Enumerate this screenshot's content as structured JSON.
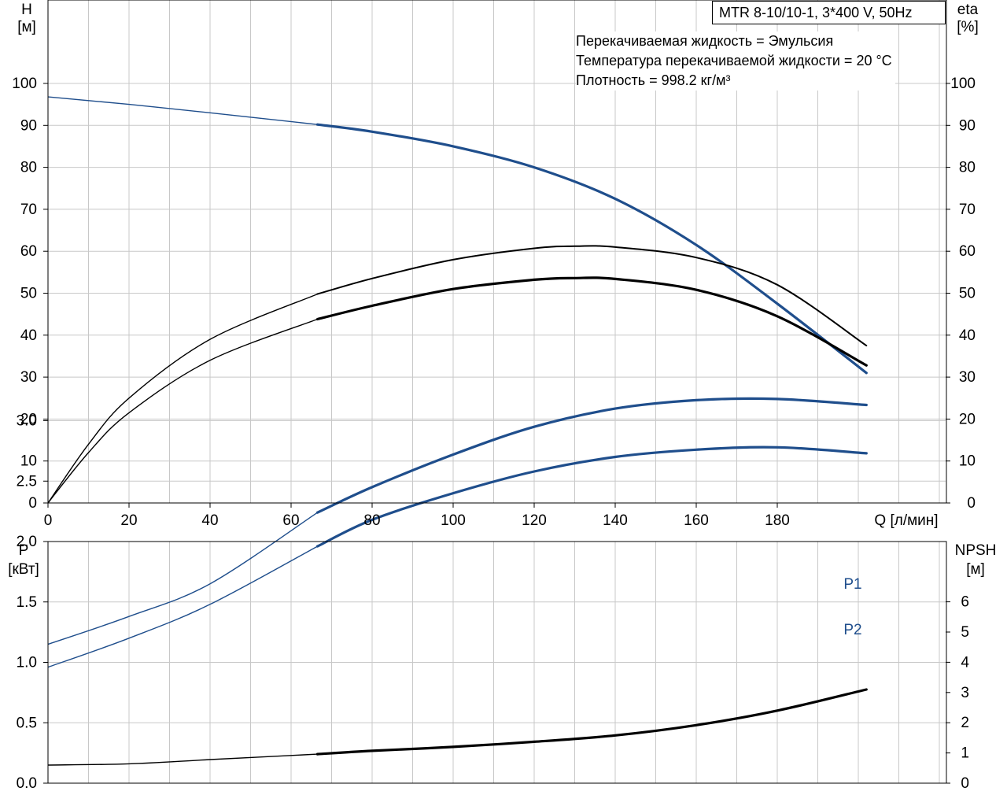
{
  "pump_label": "MTR 8-10/10-1, 3*400 V, 50Hz",
  "fluid_info": [
    "Перекачиваемая жидкость = Эмульсия",
    "Температура перекачиваемой жидкости = 20 °C",
    "Плотность = 998.2 кг/м³"
  ],
  "colors": {
    "blue": "#1f4e8c",
    "black": "#000000",
    "grid": "#c8c8c8"
  },
  "chart_data": [
    {
      "type": "line",
      "x_label": "Q [л/мин]",
      "y_left_label": [
        "H",
        "[м]"
      ],
      "y_right_label": [
        "eta",
        "[%]"
      ],
      "xlim": [
        0,
        222
      ],
      "ylim": [
        0,
        100
      ],
      "x_ticks": [
        0,
        20,
        40,
        60,
        80,
        100,
        120,
        140,
        160,
        180
      ],
      "y_ticks": [
        0,
        10,
        20,
        30,
        40,
        50,
        60,
        70,
        80,
        90,
        100
      ],
      "grid": true,
      "operating_range_start": 66.5,
      "series": [
        {
          "key": "H",
          "color": "#1f4e8c",
          "x": [
            0,
            20,
            40,
            66.5,
            80,
            100,
            120,
            140,
            160,
            180,
            202
          ],
          "y": [
            96.8,
            95,
            93,
            90.2,
            88.5,
            85,
            80,
            72.5,
            61.5,
            47.5,
            31
          ]
        },
        {
          "key": "eta",
          "color": "#000000",
          "x": [
            0,
            10,
            20,
            40,
            66.5,
            80,
            100,
            120,
            130,
            140,
            160,
            180,
            202
          ],
          "y": [
            0,
            14,
            25,
            39,
            49.8,
            53.5,
            58,
            60.7,
            61.2,
            61,
            58.5,
            52,
            37.5
          ]
        },
        {
          "key": "eta2",
          "color": "#000000",
          "x": [
            0,
            10,
            20,
            40,
            66.5,
            80,
            100,
            120,
            130,
            140,
            160,
            180,
            202
          ],
          "y": [
            0,
            12,
            21.5,
            34,
            43.8,
            47,
            51,
            53.2,
            53.6,
            53.4,
            50.8,
            44.5,
            32.8
          ]
        }
      ]
    },
    {
      "type": "line",
      "x_label": "",
      "y_left_label": [
        "P",
        "[кВт]"
      ],
      "y_right_label": [
        "NPSH",
        "[м]"
      ],
      "xlim": [
        0,
        222
      ],
      "ylim": [
        0,
        4
      ],
      "y_ticks": [
        "0.0",
        "0.5",
        "1.0",
        "1.5",
        "2.0",
        "2.5",
        "3.0"
      ],
      "y_ticks_right": [
        0,
        1,
        2,
        3,
        4,
        5,
        6
      ],
      "grid": true,
      "operating_range_start": 66.5,
      "series": [
        {
          "name": "P1",
          "color": "#1f4e8c",
          "x": [
            0,
            20,
            40,
            66.5,
            80,
            100,
            120,
            140,
            160,
            180,
            202
          ],
          "y": [
            1.15,
            1.38,
            1.65,
            2.24,
            2.45,
            2.72,
            2.95,
            3.1,
            3.17,
            3.18,
            3.13
          ]
        },
        {
          "name": "P2",
          "color": "#1f4e8c",
          "x": [
            0,
            20,
            40,
            66.5,
            80,
            100,
            120,
            140,
            160,
            180,
            202
          ],
          "y": [
            0.96,
            1.2,
            1.48,
            1.96,
            2.18,
            2.4,
            2.58,
            2.7,
            2.76,
            2.78,
            2.73
          ]
        },
        {
          "key": "NPSH",
          "color": "#000000",
          "axis": "right",
          "x": [
            0,
            20,
            40,
            66.5,
            80,
            100,
            120,
            140,
            160,
            180,
            202
          ],
          "y": [
            0.6,
            0.64,
            0.78,
            0.96,
            1.07,
            1.2,
            1.37,
            1.58,
            1.92,
            2.4,
            3.1
          ]
        }
      ]
    }
  ]
}
